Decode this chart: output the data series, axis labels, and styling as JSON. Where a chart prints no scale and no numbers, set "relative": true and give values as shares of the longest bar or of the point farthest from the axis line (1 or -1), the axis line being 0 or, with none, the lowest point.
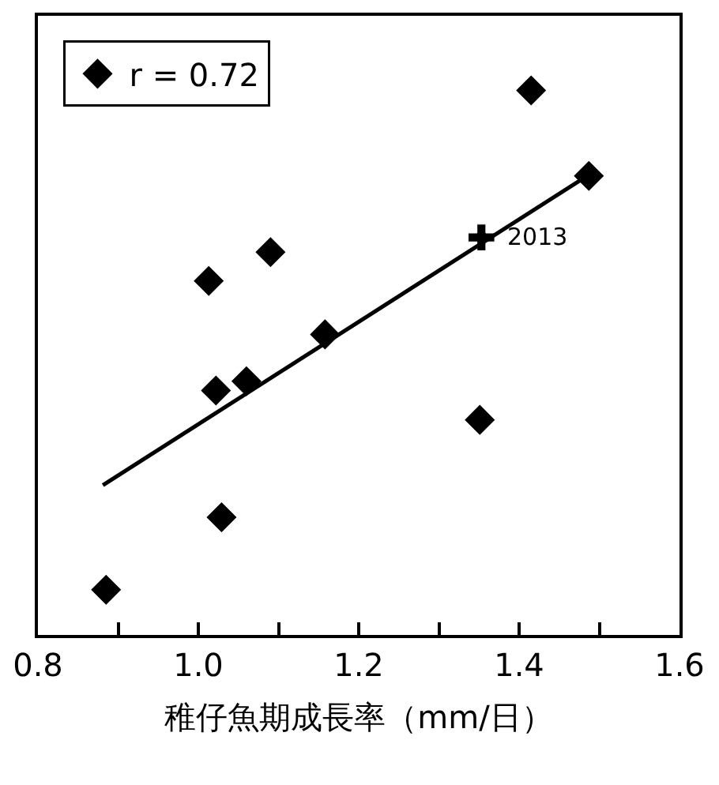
{
  "chart_data": {
    "type": "scatter",
    "relative": true,
    "xlabel": "稚仔魚期成長率（mm/日）",
    "xlim": [
      0.8,
      1.6
    ],
    "xticks": [
      {
        "value": 0.8,
        "label": "0.8"
      },
      {
        "value": 0.9,
        "label": null
      },
      {
        "value": 1.0,
        "label": "1.0"
      },
      {
        "value": 1.1,
        "label": null
      },
      {
        "value": 1.2,
        "label": "1.2"
      },
      {
        "value": 1.3,
        "label": null
      },
      {
        "value": 1.4,
        "label": "1.4"
      },
      {
        "value": 1.5,
        "label": null
      },
      {
        "value": 1.6,
        "label": "1.6"
      }
    ],
    "tick_labels": "x",
    "legend": "top left",
    "series": [
      {
        "name": "r = 0.72",
        "marker": "diamond",
        "color": "#000000",
        "x": [
          0.885,
          1.013,
          1.022,
          1.029,
          1.06,
          1.09,
          1.158,
          1.351,
          1.415,
          1.487
        ],
        "values": [
          0.083,
          0.65,
          0.449,
          0.216,
          0.466,
          0.703,
          0.552,
          0.395,
          1,
          0.843
        ]
      },
      {
        "marker": "cross",
        "color": "#000000",
        "x": [
          1.353
        ],
        "values": [
          0.73
        ]
      },
      {
        "type": "line",
        "marker": "none",
        "line_style": "solid",
        "color": "#000000",
        "x": [
          0.881,
          1.487
        ],
        "values": [
          0.275,
          0.845
        ]
      }
    ],
    "annotations": [
      {
        "text": "2013",
        "x": 1.353,
        "y": 0.73
      }
    ]
  }
}
